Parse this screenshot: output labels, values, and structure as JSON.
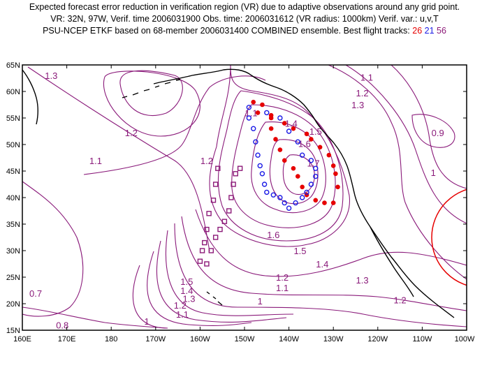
{
  "title": {
    "line1": "Expected forecast error reduction in verification region (VR) due to adaptive observations around any grid point.",
    "line2": "VR: 32N, 97W, Verif. time 2006031900  Obs. time: 2006031612 (VR radius: 1000km)   Verif. var.: u,v,T",
    "line3_prefix": "PSU-NCEP ETKF based on 68-member 2006031400 COMBINED ensemble.  Best flight tracks:",
    "tracks": [
      {
        "id": "26",
        "color": "#e60000"
      },
      {
        "id": "21",
        "color": "#1a1ae6"
      },
      {
        "id": "56",
        "color": "#8c1a78"
      }
    ]
  },
  "axes": {
    "lat_labels": [
      "65N",
      "60N",
      "55N",
      "50N",
      "45N",
      "40N",
      "35N",
      "30N",
      "25N",
      "20N",
      "15N"
    ],
    "lon_labels": [
      "160E",
      "170E",
      "180",
      "170W",
      "160W",
      "150W",
      "140W",
      "130W",
      "120W",
      "110W",
      "100W"
    ]
  },
  "colors": {
    "contour": "#8a1a7a",
    "coast": "#000000",
    "verification_circle": "#e60000",
    "track_red": "#e60000",
    "track_blue": "#1a1ae6",
    "track_purple": "#8c1a78"
  },
  "contour_labels": [
    {
      "text": "1.3",
      "lon": 166.5,
      "lat": 62.8
    },
    {
      "text": "1.2",
      "lon": 184.5,
      "lat": 52.0
    },
    {
      "text": "1.1",
      "lon": 176.5,
      "lat": 46.8
    },
    {
      "text": "1.2",
      "lon": 201.5,
      "lat": 46.8
    },
    {
      "text": "1.1",
      "lon": 211.5,
      "lat": 55.8
    },
    {
      "text": "1.4",
      "lon": 220.5,
      "lat": 53.8
    },
    {
      "text": "1.5",
      "lon": 226.0,
      "lat": 52.3
    },
    {
      "text": "1.6",
      "lon": 223.5,
      "lat": 50.0
    },
    {
      "text": "1.7",
      "lon": 225.5,
      "lat": 46.3
    },
    {
      "text": "1.1",
      "lon": 237.5,
      "lat": 62.5
    },
    {
      "text": "1.2",
      "lon": 236.5,
      "lat": 59.5
    },
    {
      "text": "1.3",
      "lon": 235.5,
      "lat": 57.3
    },
    {
      "text": "0.9",
      "lon": 253.5,
      "lat": 52.0
    },
    {
      "text": "1",
      "lon": 252.5,
      "lat": 44.5
    },
    {
      "text": "1.6",
      "lon": 216.5,
      "lat": 32.8
    },
    {
      "text": "1.5",
      "lon": 222.5,
      "lat": 29.8
    },
    {
      "text": "1.4",
      "lon": 227.5,
      "lat": 27.3
    },
    {
      "text": "1.3",
      "lon": 236.5,
      "lat": 24.3
    },
    {
      "text": "1.2",
      "lon": 218.5,
      "lat": 24.8
    },
    {
      "text": "1.1",
      "lon": 218.5,
      "lat": 22.8
    },
    {
      "text": "1",
      "lon": 213.5,
      "lat": 20.3
    },
    {
      "text": "1.2",
      "lon": 245.0,
      "lat": 20.5
    },
    {
      "text": "1.5",
      "lon": 197.0,
      "lat": 24.0
    },
    {
      "text": "1.4",
      "lon": 197.0,
      "lat": 22.3
    },
    {
      "text": "1.3",
      "lon": 197.5,
      "lat": 20.8
    },
    {
      "text": "1.2",
      "lon": 195.5,
      "lat": 19.5
    },
    {
      "text": "1.1",
      "lon": 196.0,
      "lat": 17.8
    },
    {
      "text": "1",
      "lon": 188.0,
      "lat": 16.5
    },
    {
      "text": "0.8",
      "lon": 169.0,
      "lat": 15.8
    },
    {
      "text": "0.7",
      "lon": 163.0,
      "lat": 21.8
    }
  ],
  "verification_region": {
    "lat": 32,
    "lon": 263,
    "radius_km": 1000
  },
  "flight_tracks": {
    "red_26": [
      [
        212,
        58
      ],
      [
        213,
        56
      ],
      [
        214,
        57.5
      ],
      [
        216,
        55.5
      ],
      [
        216,
        53
      ],
      [
        217,
        51
      ],
      [
        218,
        49
      ],
      [
        219,
        47
      ],
      [
        221,
        45.5
      ],
      [
        222,
        44
      ],
      [
        223,
        42
      ],
      [
        224,
        40.5
      ],
      [
        226,
        39.5
      ],
      [
        228,
        39
      ],
      [
        230,
        39
      ],
      [
        231,
        42
      ],
      [
        230.5,
        44.5
      ],
      [
        230,
        46
      ],
      [
        229,
        48
      ],
      [
        227,
        49.5
      ],
      [
        225,
        51
      ],
      [
        224,
        52
      ],
      [
        221,
        53
      ],
      [
        219,
        54
      ],
      [
        216,
        55
      ]
    ],
    "blue_21": [
      [
        211,
        57
      ],
      [
        211,
        55
      ],
      [
        212,
        53
      ],
      [
        212.5,
        50.5
      ],
      [
        213,
        48
      ],
      [
        213.5,
        46
      ],
      [
        214,
        44.5
      ],
      [
        214.5,
        42.5
      ],
      [
        215,
        41
      ],
      [
        216.5,
        40.5
      ],
      [
        218,
        40
      ],
      [
        219,
        39
      ],
      [
        220,
        38
      ],
      [
        221.5,
        39
      ],
      [
        223,
        40
      ],
      [
        224,
        41
      ],
      [
        225,
        42.5
      ],
      [
        226,
        44
      ],
      [
        226,
        45.5
      ],
      [
        225,
        47
      ],
      [
        223,
        48
      ],
      [
        222,
        50.5
      ],
      [
        220,
        52.5
      ],
      [
        218,
        55
      ],
      [
        215,
        56
      ]
    ],
    "purple_56": [
      [
        204,
        45.5
      ],
      [
        203.5,
        42.5
      ],
      [
        203,
        39.5
      ],
      [
        202,
        37
      ],
      [
        201.5,
        34
      ],
      [
        201,
        31.5
      ],
      [
        200.5,
        30
      ],
      [
        200,
        28
      ],
      [
        201.5,
        27.5
      ],
      [
        202.5,
        30
      ],
      [
        203.5,
        32.5
      ],
      [
        204.5,
        34
      ],
      [
        205.5,
        35.5
      ],
      [
        206.5,
        37.5
      ],
      [
        207,
        40
      ],
      [
        207.5,
        42.5
      ],
      [
        208,
        44.5
      ],
      [
        209,
        45.5
      ]
    ]
  }
}
